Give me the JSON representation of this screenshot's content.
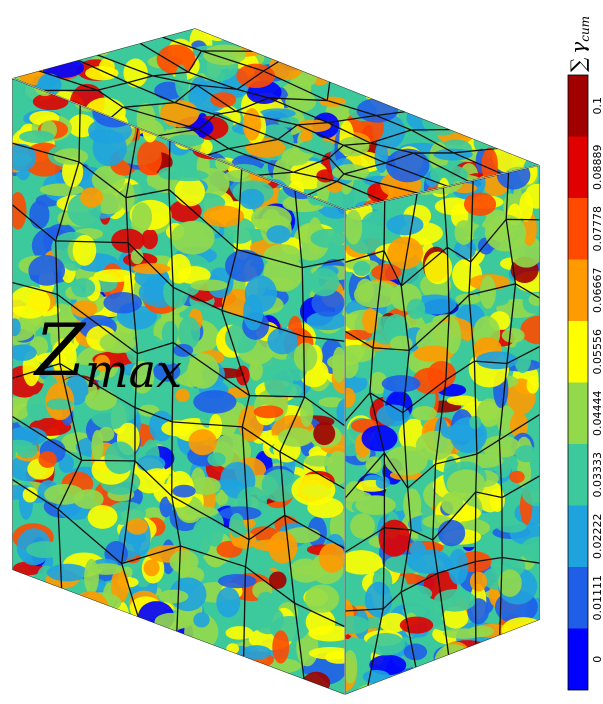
{
  "figure": {
    "label": "Z",
    "label_subscript": "max",
    "colorbar": {
      "title_symbol": "∑",
      "title_variable": "γ",
      "title_subscript": "cum",
      "levels": [
        {
          "value": 0,
          "color": "#0000ff"
        },
        {
          "value": 0.01111,
          "color": "#1f5fe8"
        },
        {
          "value": 0.02222,
          "color": "#1fa3df"
        },
        {
          "value": 0.03333,
          "color": "#3cc99c"
        },
        {
          "value": 0.04444,
          "color": "#92d94c"
        },
        {
          "value": 0.05556,
          "color": "#ffff00"
        },
        {
          "value": 0.06667,
          "color": "#ff9a00"
        },
        {
          "value": 0.07778,
          "color": "#ff4a00"
        },
        {
          "value": 0.08889,
          "color": "#e00000"
        },
        {
          "value": 0.1,
          "color": "#a00000"
        }
      ]
    }
  }
}
